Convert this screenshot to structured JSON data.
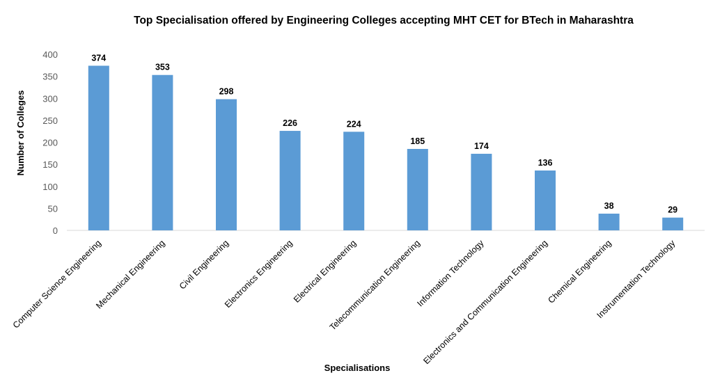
{
  "chart_data": {
    "type": "bar",
    "title": "Top Specialisation offered by Engineering Colleges accepting MHT CET for BTech in Maharashtra",
    "xlabel": "Specialisations",
    "ylabel": "Number of Colleges",
    "categories": [
      "Computer Science Engineering",
      "Mechanical Engineering",
      "Civil Engineering",
      "Electronics Engineering",
      "Electrical Engineering",
      "Telecommunication Engineering",
      "Information Technology",
      "Electronics and Communication Engineering",
      "Chemical Engineering",
      "Instrumentation Technology"
    ],
    "values": [
      374,
      353,
      298,
      226,
      224,
      185,
      174,
      136,
      38,
      29
    ],
    "ylim": [
      0,
      400
    ],
    "yticks": [
      0,
      50,
      100,
      150,
      200,
      250,
      300,
      350,
      400
    ],
    "grid": false,
    "legend": "none",
    "bar_color": "#5b9bd5",
    "data_labels": true
  }
}
